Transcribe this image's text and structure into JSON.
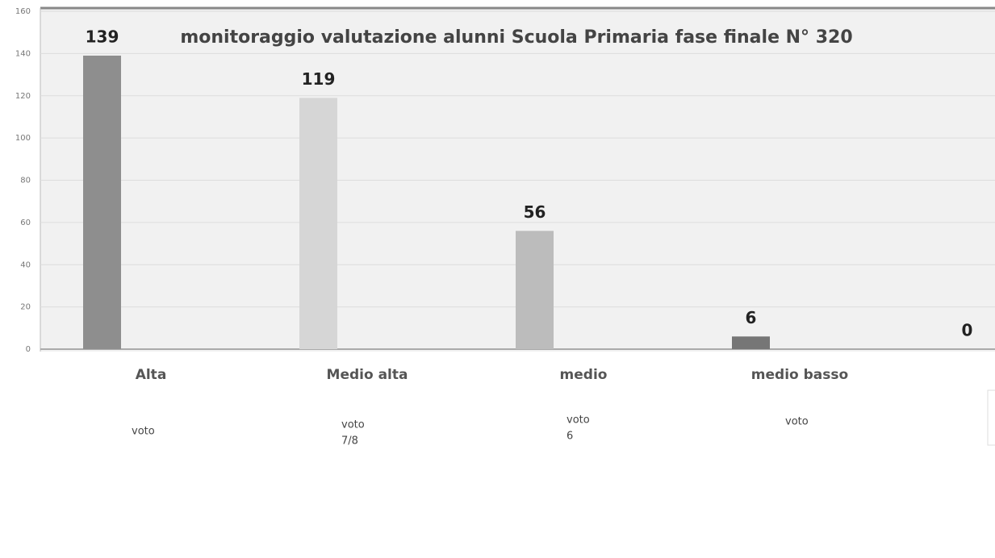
{
  "chart_data": {
    "type": "bar",
    "title": "monitoraggio valutazione alunni  Scuola Primaria fase finale N° 320",
    "categories": [
      "Alta",
      "Medio alta",
      "medio",
      "medio basso",
      null
    ],
    "values": [
      139,
      119,
      56,
      6,
      0
    ],
    "colors": [
      "#8e8e8e",
      "#d6d6d6",
      "#bcbcbc",
      "#767676",
      "#999999"
    ],
    "ylim": [
      0,
      160
    ],
    "yticks": [
      0,
      20,
      40,
      60,
      80,
      100,
      120,
      140,
      160
    ],
    "grid": true,
    "annotations": [
      [
        "voto"
      ],
      [
        "voto",
        "7/8"
      ],
      [
        "voto",
        "6"
      ],
      [
        "voto"
      ]
    ]
  }
}
